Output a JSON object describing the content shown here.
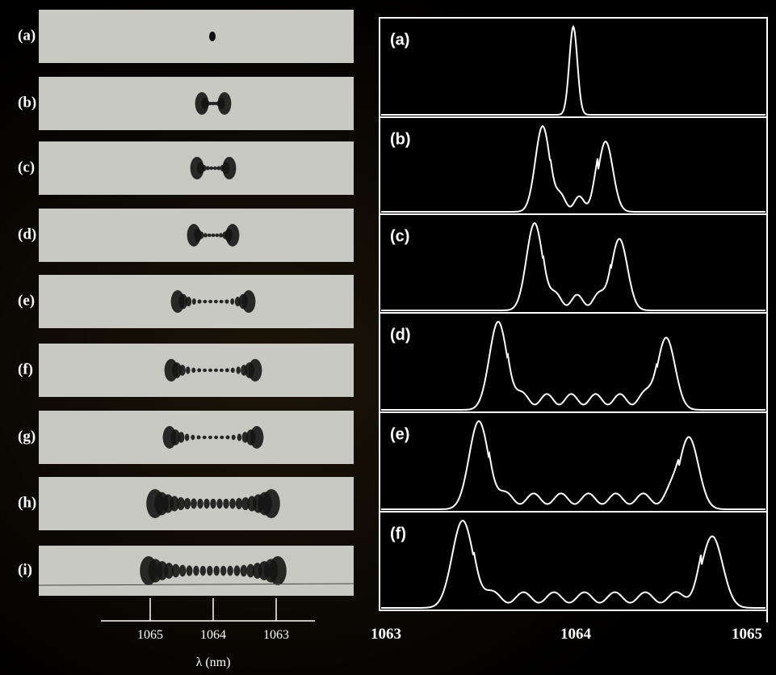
{
  "left_panel": {
    "labels": [
      "(a)",
      "(b)",
      "(c)",
      "(d)",
      "(e)",
      "(f)",
      "(g)",
      "(h)",
      "(i)"
    ],
    "axis_ticks": [
      "1065",
      "1064",
      "1063"
    ],
    "axis_label": "λ (nm)"
  },
  "right_panel": {
    "labels": [
      "(a)",
      "(b)",
      "(c)",
      "(d)",
      "(e)",
      "(f)"
    ],
    "axis_ticks": [
      "1063",
      "1064",
      "1065"
    ]
  }
}
